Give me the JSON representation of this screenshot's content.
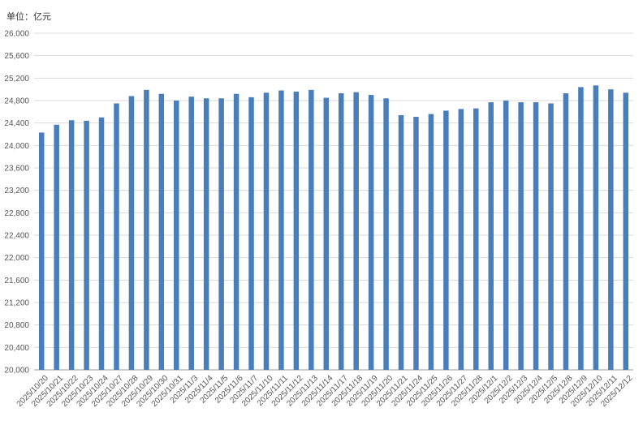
{
  "chart_data": {
    "type": "bar",
    "unit_label": "单位：亿元",
    "ylim": [
      20000,
      26000
    ],
    "ytick_step": 400,
    "yticks": [
      "20,000",
      "20,400",
      "20,800",
      "21,200",
      "21,600",
      "22,000",
      "22,400",
      "22,800",
      "23,200",
      "23,600",
      "24,000",
      "24,400",
      "24,800",
      "25,200",
      "25,600",
      "26,000"
    ],
    "grid": true,
    "bar_color": "#4a7ebb",
    "categories": [
      "2025/10/20",
      "2025/10/21",
      "2025/10/22",
      "2025/10/23",
      "2025/10/24",
      "2025/10/27",
      "2025/10/28",
      "2025/10/29",
      "2025/10/30",
      "2025/10/31",
      "2025/11/3",
      "2025/11/4",
      "2025/11/5",
      "2025/11/6",
      "2025/11/7",
      "2025/11/10",
      "2025/11/11",
      "2025/11/12",
      "2025/11/13",
      "2025/11/14",
      "2025/11/17",
      "2025/11/18",
      "2025/11/19",
      "2025/11/20",
      "2025/11/21",
      "2025/11/24",
      "2025/11/25",
      "2025/11/26",
      "2025/11/27",
      "2025/11/28",
      "2025/12/1",
      "2025/12/2",
      "2025/12/3",
      "2025/12/4",
      "2025/12/5",
      "2025/12/8",
      "2025/12/9",
      "2025/12/10",
      "2025/12/11",
      "2025/12/12"
    ],
    "values": [
      24230,
      24370,
      24450,
      24440,
      24500,
      24750,
      24880,
      24990,
      24920,
      24800,
      24870,
      24840,
      24840,
      24920,
      24860,
      24940,
      24980,
      24960,
      24990,
      24850,
      24930,
      24950,
      24900,
      24840,
      24540,
      24510,
      24560,
      24620,
      24650,
      24660,
      24770,
      24800,
      24770,
      24770,
      24750,
      24930,
      25040,
      25070,
      25000,
      24940
    ]
  }
}
